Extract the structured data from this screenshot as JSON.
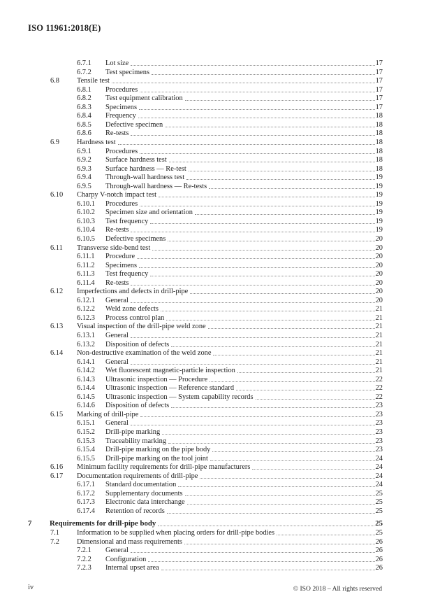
{
  "header": {
    "title": "ISO 11961:2018(E)"
  },
  "toc": {
    "entries": [
      {
        "level": 3,
        "num": "6.7.1",
        "title": "Lot size",
        "page": "17"
      },
      {
        "level": 3,
        "num": "6.7.2",
        "title": "Test specimens",
        "page": "17"
      },
      {
        "level": 2,
        "num": "6.8",
        "title": "Tensile test",
        "page": "17"
      },
      {
        "level": 3,
        "num": "6.8.1",
        "title": "Procedures",
        "page": "17"
      },
      {
        "level": 3,
        "num": "6.8.2",
        "title": "Test equipment calibration",
        "page": "17"
      },
      {
        "level": 3,
        "num": "6.8.3",
        "title": "Specimens",
        "page": "17"
      },
      {
        "level": 3,
        "num": "6.8.4",
        "title": "Frequency",
        "page": "18"
      },
      {
        "level": 3,
        "num": "6.8.5",
        "title": "Defective specimen",
        "page": "18"
      },
      {
        "level": 3,
        "num": "6.8.6",
        "title": "Re-tests",
        "page": "18"
      },
      {
        "level": 2,
        "num": "6.9",
        "title": "Hardness test",
        "page": "18"
      },
      {
        "level": 3,
        "num": "6.9.1",
        "title": "Procedures",
        "page": "18"
      },
      {
        "level": 3,
        "num": "6.9.2",
        "title": "Surface hardness test",
        "page": "18"
      },
      {
        "level": 3,
        "num": "6.9.3",
        "title": "Surface hardness — Re-test",
        "page": "18"
      },
      {
        "level": 3,
        "num": "6.9.4",
        "title": "Through-wall hardness test",
        "page": "19"
      },
      {
        "level": 3,
        "num": "6.9.5",
        "title": "Through-wall hardness — Re-tests",
        "page": "19"
      },
      {
        "level": 2,
        "num": "6.10",
        "title": "Charpy V-notch impact test",
        "page": "19"
      },
      {
        "level": 3,
        "num": "6.10.1",
        "title": "Procedures",
        "page": "19"
      },
      {
        "level": 3,
        "num": "6.10.2",
        "title": "Specimen size and orientation",
        "page": "19"
      },
      {
        "level": 3,
        "num": "6.10.3",
        "title": "Test frequency",
        "page": "19"
      },
      {
        "level": 3,
        "num": "6.10.4",
        "title": "Re-tests",
        "page": "19"
      },
      {
        "level": 3,
        "num": "6.10.5",
        "title": "Defective specimens",
        "page": "20"
      },
      {
        "level": 2,
        "num": "6.11",
        "title": "Transverse side-bend test",
        "page": "20"
      },
      {
        "level": 3,
        "num": "6.11.1",
        "title": "Procedure",
        "page": "20"
      },
      {
        "level": 3,
        "num": "6.11.2",
        "title": "Specimens",
        "page": "20"
      },
      {
        "level": 3,
        "num": "6.11.3",
        "title": "Test frequency",
        "page": "20"
      },
      {
        "level": 3,
        "num": "6.11.4",
        "title": "Re-tests",
        "page": "20"
      },
      {
        "level": 2,
        "num": "6.12",
        "title": "Imperfections and defects in drill-pipe",
        "page": "20"
      },
      {
        "level": 3,
        "num": "6.12.1",
        "title": "General",
        "page": "20"
      },
      {
        "level": 3,
        "num": "6.12.2",
        "title": "Weld zone defects",
        "page": "21"
      },
      {
        "level": 3,
        "num": "6.12.3",
        "title": "Process control plan",
        "page": "21"
      },
      {
        "level": 2,
        "num": "6.13",
        "title": "Visual inspection of the drill-pipe weld zone",
        "page": "21"
      },
      {
        "level": 3,
        "num": "6.13.1",
        "title": "General",
        "page": "21"
      },
      {
        "level": 3,
        "num": "6.13.2",
        "title": "Disposition of defects",
        "page": "21"
      },
      {
        "level": 2,
        "num": "6.14",
        "title": "Non-destructive examination of the weld zone",
        "page": "21"
      },
      {
        "level": 3,
        "num": "6.14.1",
        "title": "General",
        "page": "21"
      },
      {
        "level": 3,
        "num": "6.14.2",
        "title": "Wet fluorescent magnetic-particle inspection",
        "page": "21"
      },
      {
        "level": 3,
        "num": "6.14.3",
        "title": "Ultrasonic inspection — Procedure",
        "page": "22"
      },
      {
        "level": 3,
        "num": "6.14.4",
        "title": "Ultrasonic inspection — Reference standard",
        "page": "22"
      },
      {
        "level": 3,
        "num": "6.14.5",
        "title": "Ultrasonic inspection — System capability records",
        "page": "22"
      },
      {
        "level": 3,
        "num": "6.14.6",
        "title": "Disposition of defects",
        "page": "23"
      },
      {
        "level": 2,
        "num": "6.15",
        "title": "Marking of drill-pipe",
        "page": "23"
      },
      {
        "level": 3,
        "num": "6.15.1",
        "title": "General",
        "page": "23"
      },
      {
        "level": 3,
        "num": "6.15.2",
        "title": "Drill-pipe marking",
        "page": "23"
      },
      {
        "level": 3,
        "num": "6.15.3",
        "title": "Traceability marking",
        "page": "23"
      },
      {
        "level": 3,
        "num": "6.15.4",
        "title": "Drill-pipe marking on the pipe body",
        "page": "23"
      },
      {
        "level": 3,
        "num": "6.15.5",
        "title": "Drill-pipe marking on the tool joint",
        "page": "24"
      },
      {
        "level": 2,
        "num": "6.16",
        "title": "Minimum facility requirements for drill-pipe manufacturers",
        "page": "24"
      },
      {
        "level": 2,
        "num": "6.17",
        "title": "Documentation requirements of drill-pipe",
        "page": "24"
      },
      {
        "level": 3,
        "num": "6.17.1",
        "title": "Standard documentation",
        "page": "24"
      },
      {
        "level": 3,
        "num": "6.17.2",
        "title": "Supplementary documents",
        "page": "25"
      },
      {
        "level": 3,
        "num": "6.17.3",
        "title": "Electronic data interchange",
        "page": "25"
      },
      {
        "level": 3,
        "num": "6.17.4",
        "title": "Retention of records",
        "page": "25"
      },
      {
        "level": 1,
        "num": "7",
        "title": "Requirements for drill-pipe body",
        "page": "25"
      },
      {
        "level": 2,
        "num": "7.1",
        "title": "Information to be supplied when placing orders for drill-pipe bodies",
        "page": "25"
      },
      {
        "level": 2,
        "num": "7.2",
        "title": "Dimensional and mass requirements",
        "page": "26"
      },
      {
        "level": 3,
        "num": "7.2.1",
        "title": "General",
        "page": "26"
      },
      {
        "level": 3,
        "num": "7.2.2",
        "title": "Configuration",
        "page": "26"
      },
      {
        "level": 3,
        "num": "7.2.3",
        "title": "Internal upset area",
        "page": "26"
      }
    ]
  },
  "footer": {
    "page_label": "iv",
    "copyright": "© ISO 2018 – All rights reserved"
  }
}
